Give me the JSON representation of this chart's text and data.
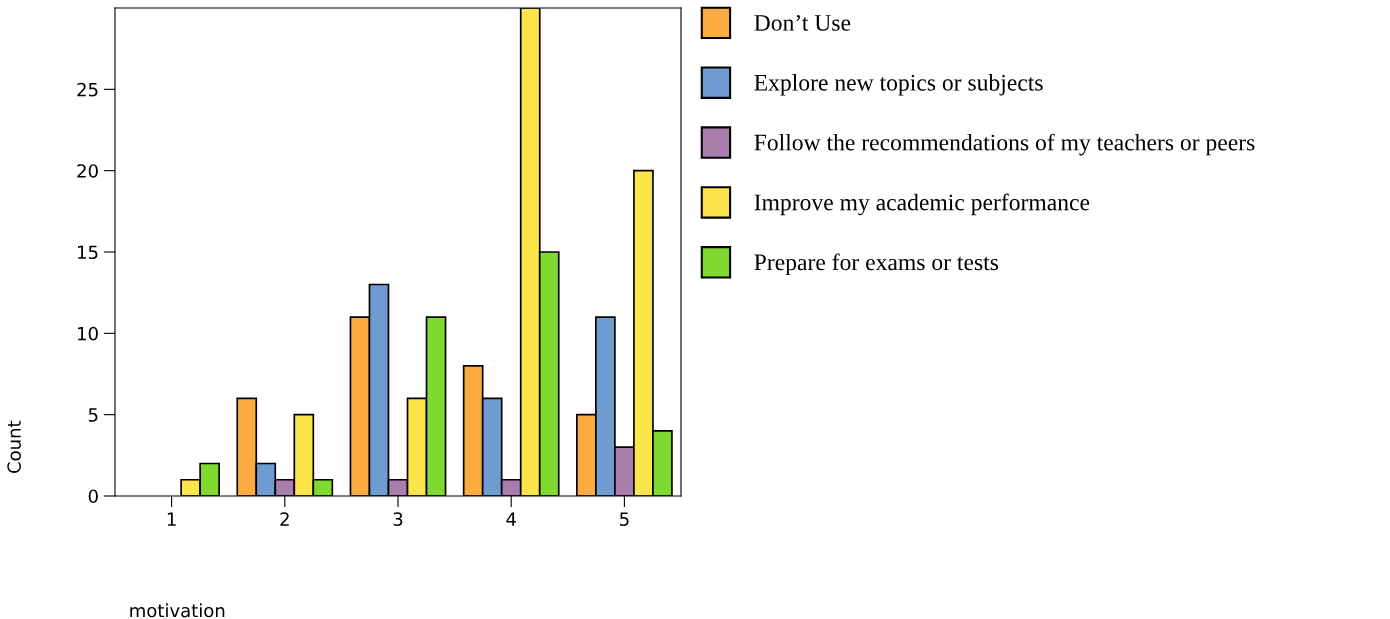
{
  "chart_data": {
    "type": "bar",
    "xlabel": "motivation",
    "ylabel": "Count",
    "categories": [
      "1",
      "2",
      "3",
      "4",
      "5"
    ],
    "series": [
      {
        "name": "Don’t Use",
        "color": "#fbab3f",
        "values": [
          null,
          6,
          11,
          8,
          5
        ]
      },
      {
        "name": "Explore new topics or subjects",
        "color": "#6e9bd0",
        "values": [
          null,
          2,
          13,
          6,
          11
        ]
      },
      {
        "name": "Follow the recommendations of my teachers or peers",
        "color": "#a97ead",
        "values": [
          null,
          1,
          1,
          1,
          3
        ]
      },
      {
        "name": "Improve my academic performance",
        "color": "#fbe54b",
        "values": [
          1,
          5,
          6,
          30,
          20
        ]
      },
      {
        "name": "Prepare for exams or tests",
        "color": "#80d92f",
        "values": [
          2,
          1,
          11,
          15,
          4
        ]
      }
    ],
    "ylim": [
      0,
      30
    ],
    "yticks": [
      0,
      5,
      10,
      15,
      20,
      25
    ],
    "grid": false,
    "legend": "right"
  }
}
